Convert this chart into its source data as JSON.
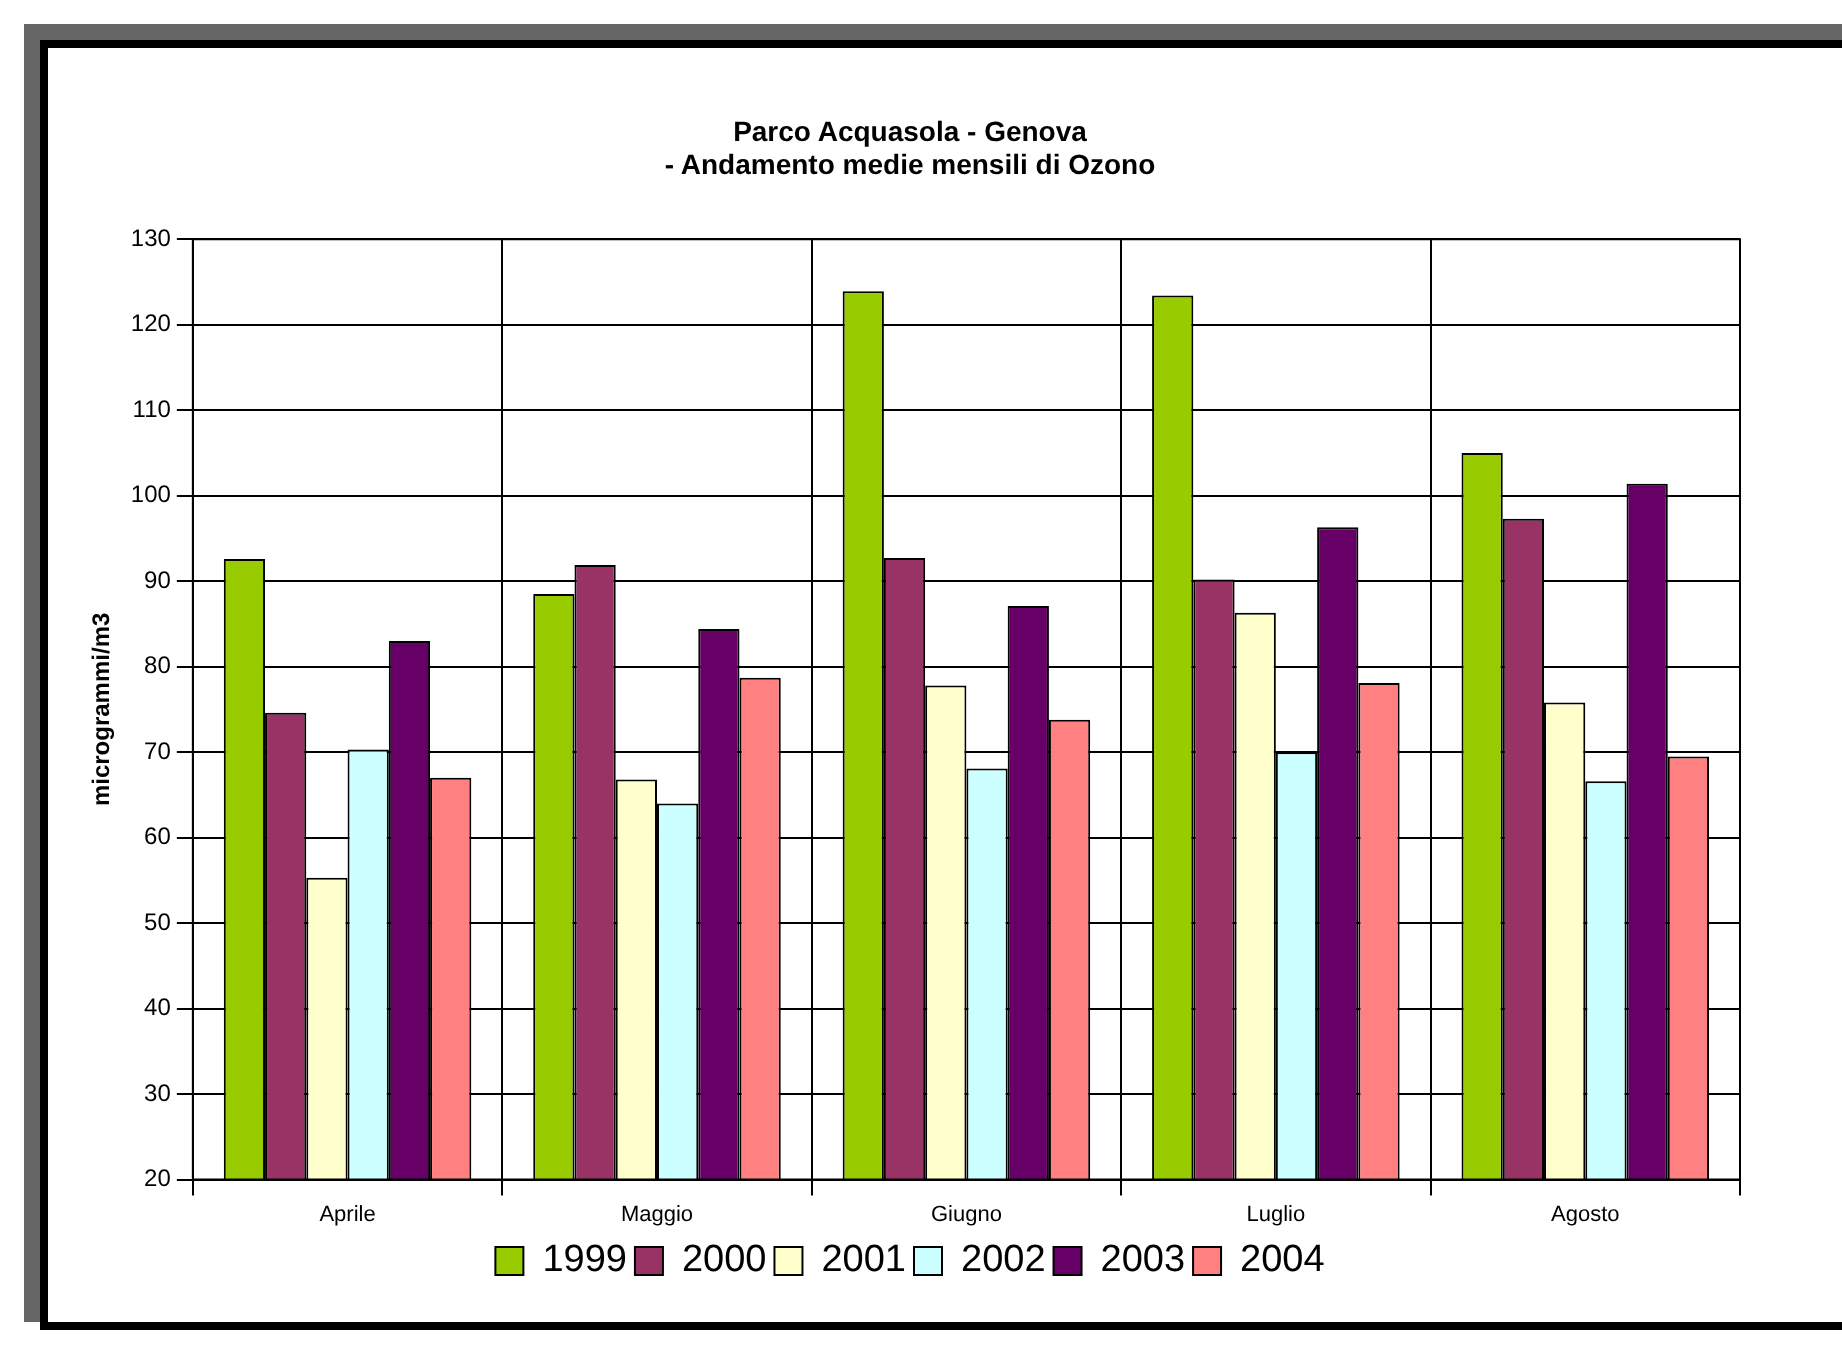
{
  "chart_data": {
    "type": "bar",
    "title": [
      "Parco Acquasola - Genova",
      "- Andamento medie mensili di Ozono"
    ],
    "ylabel": "microgrammi/m3",
    "categories": [
      "Aprile",
      "Maggio",
      "Giugno",
      "Luglio",
      "Agosto"
    ],
    "series": [
      {
        "name": "1999",
        "color": "#99cc00",
        "values": [
          92.6,
          88.5,
          123.9,
          123.4,
          105
        ]
      },
      {
        "name": "2000",
        "color": "#993366",
        "values": [
          74.6,
          91.9,
          92.7,
          90.2,
          97.3
        ]
      },
      {
        "name": "2001",
        "color": "#ffffcc",
        "values": [
          55.3,
          66.8,
          77.8,
          86.3,
          75.8
        ]
      },
      {
        "name": "2002",
        "color": "#ccffff",
        "values": [
          70.3,
          64,
          68.1,
          70,
          66.6
        ]
      },
      {
        "name": "2003",
        "color": "#660066",
        "values": [
          83,
          84.4,
          87.1,
          96.3,
          101.4
        ]
      },
      {
        "name": "2004",
        "color": "#ff8080",
        "values": [
          67,
          78.7,
          73.8,
          78.1,
          69.5
        ]
      }
    ],
    "ylim": [
      20,
      130
    ],
    "yticks": [
      20,
      30,
      40,
      50,
      60,
      70,
      80,
      90,
      100,
      110,
      120,
      130
    ],
    "grid": true,
    "legend": "bottom"
  }
}
